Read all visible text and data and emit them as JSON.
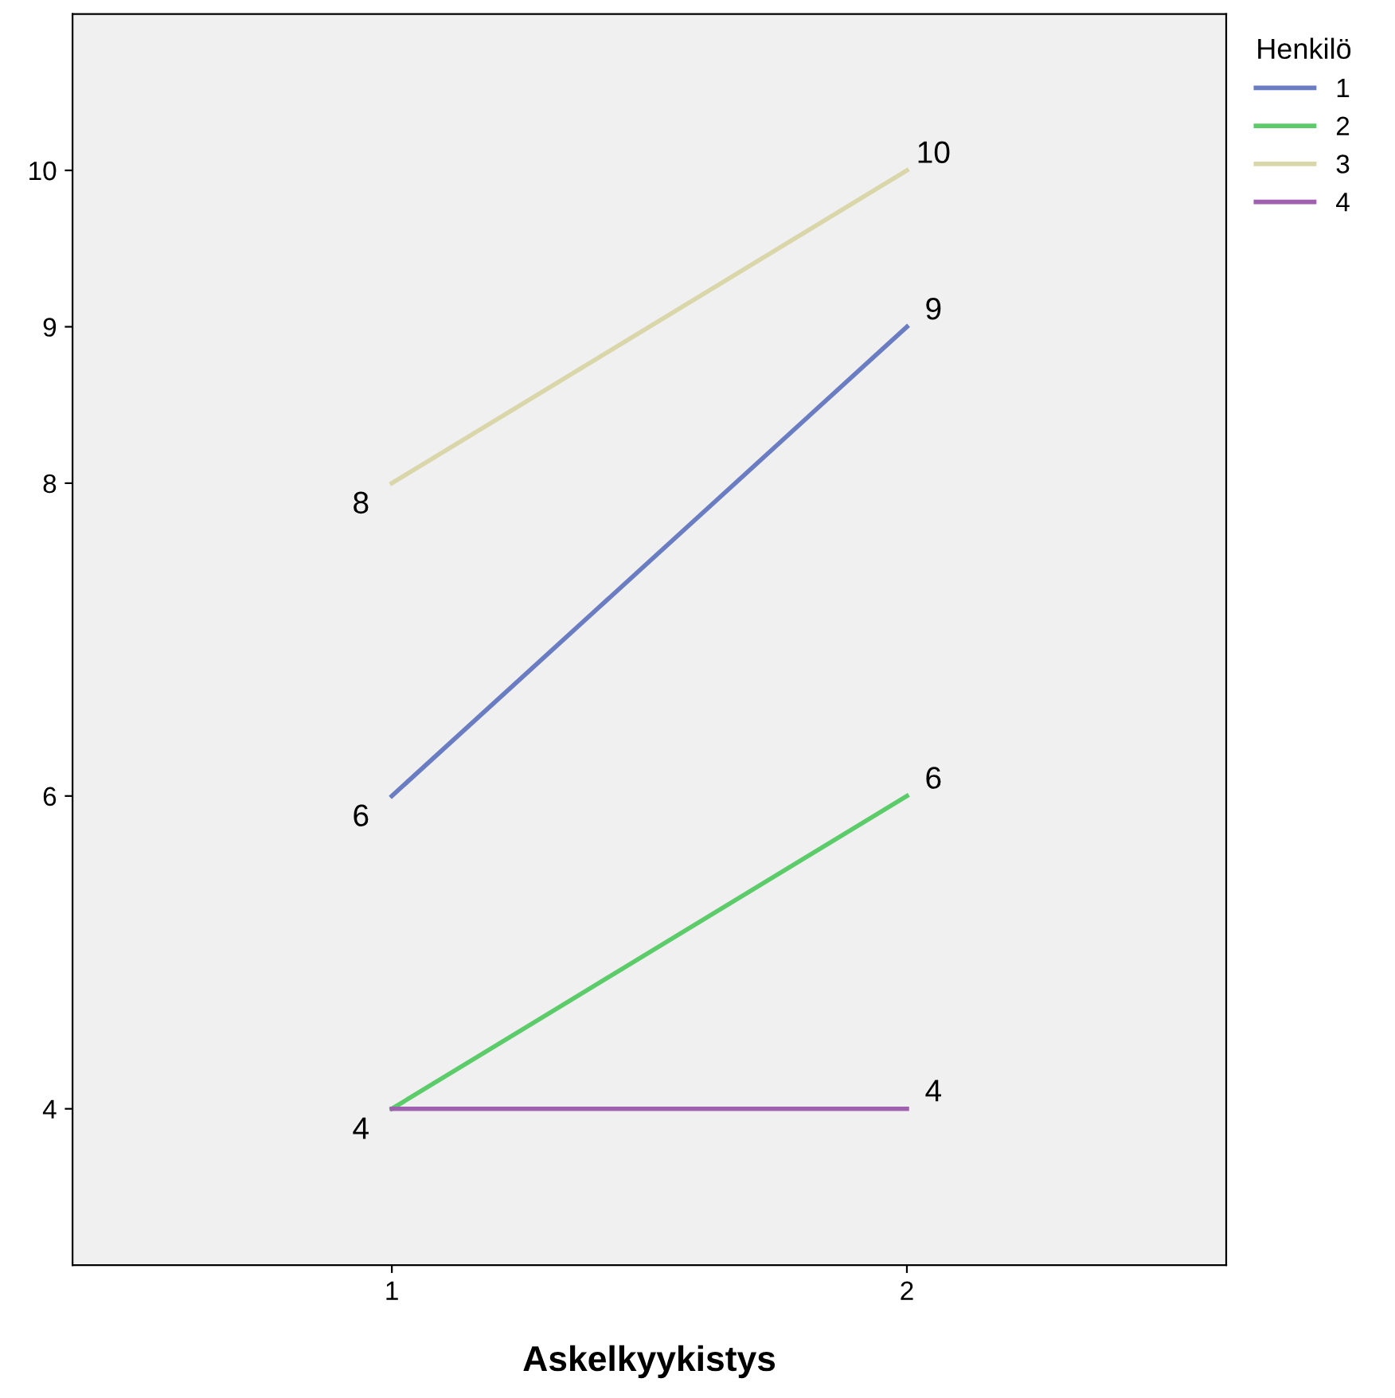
{
  "chart_data": {
    "type": "line",
    "xlabel": "Askelkyykistys",
    "legend_title": "Henkilö",
    "categories": [
      "1",
      "2"
    ],
    "series": [
      {
        "name": "1",
        "color": "#6a7cc2",
        "values": [
          6,
          9
        ],
        "value_labels": [
          "6",
          "9"
        ]
      },
      {
        "name": "2",
        "color": "#5ccc6a",
        "values": [
          4,
          6
        ],
        "value_labels": [
          "4",
          "6"
        ]
      },
      {
        "name": "3",
        "color": "#d9d6a9",
        "values": [
          8,
          10
        ],
        "value_labels": [
          "8",
          "10"
        ]
      },
      {
        "name": "4",
        "color": "#a060b0",
        "values": [
          4,
          4
        ],
        "value_labels": [
          null,
          "4"
        ]
      }
    ],
    "ylim": [
      3,
      11
    ],
    "yticks": [
      4,
      6,
      8,
      9,
      10
    ],
    "grid": false,
    "legend": "top right",
    "marker": "none",
    "line_style": "solid"
  }
}
